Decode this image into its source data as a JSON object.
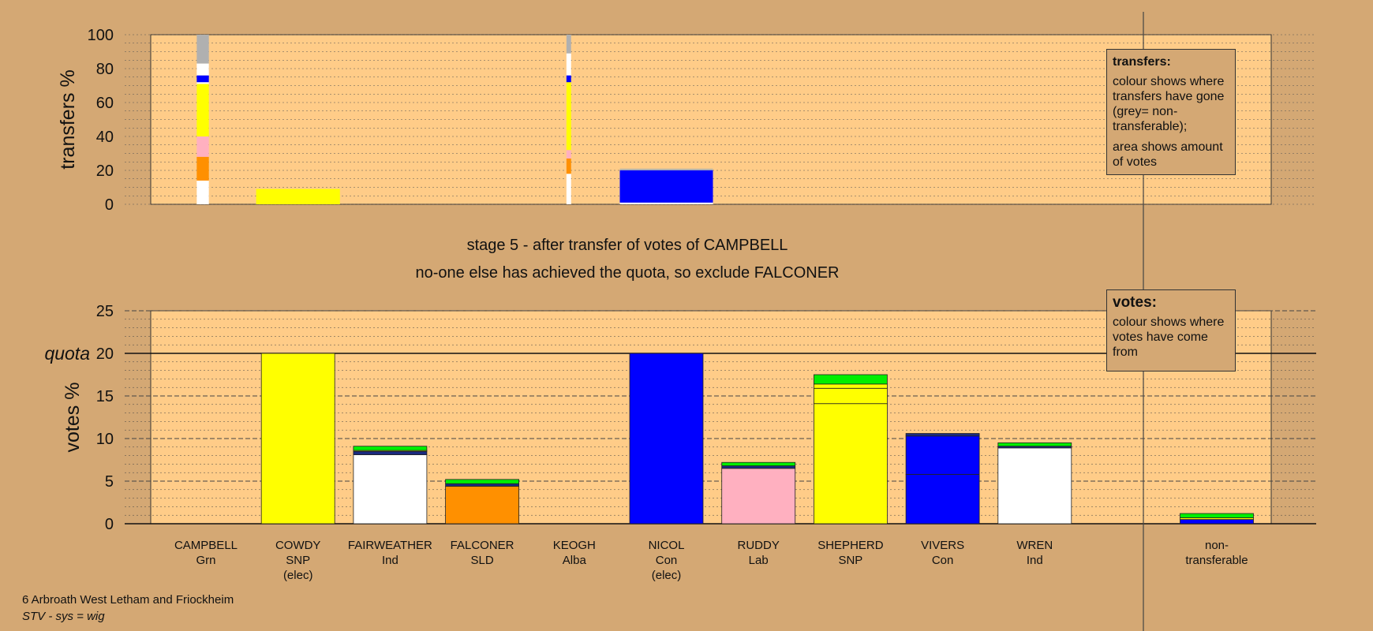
{
  "colors": {
    "background": "#D4A874",
    "plot_bg": "#FFCC88",
    "Grn": "#00EE00",
    "SNP": "#FFFF00",
    "Ind": "#FFFFFF",
    "SLD": "#FF9000",
    "Con": "#0000FF",
    "Lab": "#FFB0C0",
    "Alba": "#1A2A80",
    "non-transferable": "#B0B0B0"
  },
  "header": {
    "stage_line": "stage 5 - after transfer of votes of CAMPBELL",
    "status_line": "no-one else has achieved the quota, so exclude FALCONER"
  },
  "footer": {
    "ward": "6 Arbroath West Letham and Friockheim",
    "system": "STV - sys = wig"
  },
  "legend_transfers": {
    "title": "transfers:",
    "line1": "colour shows where transfers have gone (grey= non-transferable);",
    "line2": "area shows amount of votes"
  },
  "legend_votes": {
    "title": "votes:",
    "line1": "colour shows where votes have come from"
  },
  "chart_data": [
    {
      "type": "bar",
      "name": "transfers",
      "ylabel": "transfers %",
      "ylim": [
        0,
        100
      ],
      "yticks": [
        0,
        20,
        40,
        60,
        80,
        100
      ],
      "grid": true,
      "columns": [
        {
          "candidate": "CAMPBELL",
          "width_share": 0.13,
          "segments": [
            {
              "party": "Ind",
              "from": 0,
              "to": 14
            },
            {
              "party": "SLD",
              "from": 14,
              "to": 28
            },
            {
              "party": "Lab",
              "from": 28,
              "to": 40
            },
            {
              "party": "SNP",
              "from": 40,
              "to": 71
            },
            {
              "party": "Ind",
              "from": 71,
              "to": 72
            },
            {
              "party": "Con",
              "from": 72,
              "to": 76
            },
            {
              "party": "Ind",
              "from": 76,
              "to": 83
            },
            {
              "party": "non-transferable",
              "from": 83,
              "to": 100
            }
          ]
        },
        {
          "candidate": "COWDY",
          "width_share": 0.9,
          "segments": [
            {
              "party": "SNP",
              "from": 0,
              "to": 9
            }
          ]
        },
        {
          "candidate": "KEOGH",
          "width_share": 0.05,
          "segments": [
            {
              "party": "Ind",
              "from": 0,
              "to": 18
            },
            {
              "party": "SLD",
              "from": 18,
              "to": 27
            },
            {
              "party": "Lab",
              "from": 27,
              "to": 32
            },
            {
              "party": "SNP",
              "from": 32,
              "to": 72
            },
            {
              "party": "Con",
              "from": 72,
              "to": 76
            },
            {
              "party": "Ind",
              "from": 76,
              "to": 89
            },
            {
              "party": "non-transferable",
              "from": 89,
              "to": 100
            }
          ]
        },
        {
          "candidate": "NICOL",
          "width_share": 1.0,
          "segments": [
            {
              "party": "Ind",
              "from": 0,
              "to": 1
            },
            {
              "party": "Con",
              "from": 1,
              "to": 20
            },
            {
              "party": "non-transferable",
              "from": 20,
              "to": 21
            }
          ]
        }
      ]
    },
    {
      "type": "bar",
      "name": "votes",
      "ylabel": "votes %",
      "ylim": [
        0,
        25
      ],
      "yticks": [
        0,
        5,
        10,
        15,
        20,
        25
      ],
      "quota": 20,
      "quota_label": "quota",
      "grid": true,
      "candidates": [
        {
          "name": "CAMPBELL",
          "party": "Grn",
          "elected": false,
          "segments": []
        },
        {
          "name": "COWDY",
          "party": "SNP",
          "elected": true,
          "segments": [
            {
              "party": "SNP",
              "value": 20
            }
          ]
        },
        {
          "name": "FAIRWEATHER",
          "party": "Ind",
          "elected": false,
          "segments": [
            {
              "party": "Ind",
              "value": 8.1
            },
            {
              "party": "Alba",
              "value": 0.4
            },
            {
              "party": "SNP",
              "value": 0.1
            },
            {
              "party": "Grn",
              "value": 0.5
            }
          ]
        },
        {
          "name": "FALCONER",
          "party": "SLD",
          "elected": false,
          "segments": [
            {
              "party": "SLD",
              "value": 4.4
            },
            {
              "party": "Alba",
              "value": 0.3
            },
            {
              "party": "Grn",
              "value": 0.5
            }
          ]
        },
        {
          "name": "KEOGH",
          "party": "Alba",
          "elected": false,
          "segments": []
        },
        {
          "name": "NICOL",
          "party": "Con",
          "elected": true,
          "segments": [
            {
              "party": "Con",
              "value": 20
            }
          ]
        },
        {
          "name": "RUDDY",
          "party": "Lab",
          "elected": false,
          "segments": [
            {
              "party": "Lab",
              "value": 6.5
            },
            {
              "party": "Alba",
              "value": 0.3
            },
            {
              "party": "Grn",
              "value": 0.4
            }
          ]
        },
        {
          "name": "SHEPHERD",
          "party": "SNP",
          "elected": false,
          "segments": [
            {
              "party": "SNP",
              "value": 14.1
            },
            {
              "party": "SNP",
              "value": 1.8
            },
            {
              "party": "SNP",
              "value": 0.5
            },
            {
              "party": "Grn",
              "value": 1.1
            }
          ]
        },
        {
          "name": "VIVERS",
          "party": "Con",
          "elected": false,
          "segments": [
            {
              "party": "Con",
              "value": 5.8
            },
            {
              "party": "Con",
              "value": 4.5
            },
            {
              "party": "Alba",
              "value": 0.3
            }
          ]
        },
        {
          "name": "WREN",
          "party": "Ind",
          "elected": false,
          "segments": [
            {
              "party": "Ind",
              "value": 8.9
            },
            {
              "party": "Alba",
              "value": 0.2
            },
            {
              "party": "Grn",
              "value": 0.4
            }
          ]
        }
      ],
      "non_transferable": {
        "label": "non-transferable",
        "segments": [
          {
            "party": "Con",
            "value": 0.5
          },
          {
            "party": "SNP",
            "value": 0.2
          },
          {
            "party": "Grn",
            "value": 0.5
          }
        ]
      }
    }
  ]
}
